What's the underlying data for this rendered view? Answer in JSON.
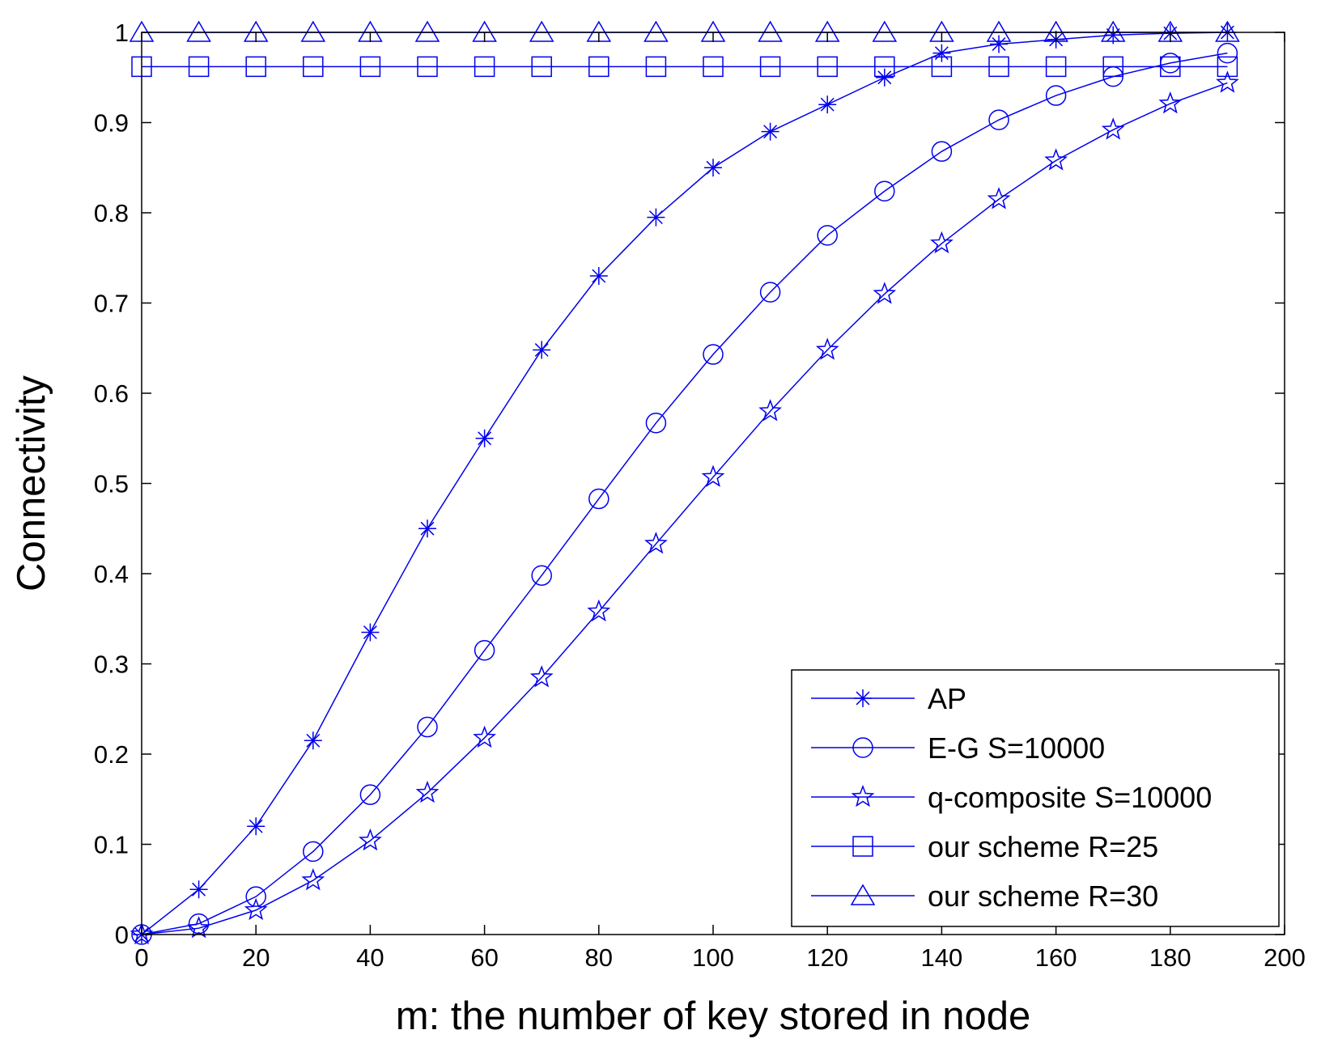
{
  "chart_data": {
    "type": "line",
    "title": "",
    "xlabel": "m: the number of key stored in node",
    "ylabel": "Connectivity",
    "xlim": [
      0,
      200
    ],
    "ylim": [
      0,
      1
    ],
    "xticks": [
      "0",
      "20",
      "40",
      "60",
      "80",
      "100",
      "120",
      "140",
      "160",
      "180",
      "200"
    ],
    "yticks": [
      "0",
      "0.1",
      "0.2",
      "0.3",
      "0.4",
      "0.5",
      "0.6",
      "0.7",
      "0.8",
      "0.9",
      "1"
    ],
    "grid": false,
    "legend_position": "bottom-right",
    "x": [
      0,
      10,
      20,
      30,
      40,
      50,
      60,
      70,
      80,
      90,
      100,
      110,
      120,
      130,
      140,
      150,
      160,
      170,
      180,
      190
    ],
    "series": [
      {
        "name": "AP",
        "marker": "asterisk",
        "color": "#0000ee",
        "values": [
          0,
          0.05,
          0.12,
          0.215,
          0.335,
          0.45,
          0.55,
          0.648,
          0.73,
          0.795,
          0.85,
          0.89,
          0.92,
          0.95,
          0.977,
          0.987,
          0.992,
          0.997,
          0.999,
          1.0
        ]
      },
      {
        "name": "E-G S=10000",
        "marker": "circle",
        "color": "#0000ee",
        "values": [
          0,
          0.012,
          0.042,
          0.092,
          0.155,
          0.23,
          0.315,
          0.398,
          0.483,
          0.567,
          0.643,
          0.712,
          0.775,
          0.824,
          0.868,
          0.903,
          0.93,
          0.951,
          0.966,
          0.977
        ]
      },
      {
        "name": "q-composite S=10000",
        "marker": "star",
        "color": "#0000ee",
        "values": [
          0,
          0.007,
          0.027,
          0.06,
          0.104,
          0.157,
          0.218,
          0.285,
          0.358,
          0.433,
          0.507,
          0.58,
          0.648,
          0.71,
          0.766,
          0.815,
          0.858,
          0.892,
          0.921,
          0.944
        ]
      },
      {
        "name": "our scheme R=25",
        "marker": "square",
        "color": "#0000ee",
        "values": [
          0.962,
          0.962,
          0.962,
          0.962,
          0.962,
          0.962,
          0.962,
          0.962,
          0.962,
          0.962,
          0.962,
          0.962,
          0.962,
          0.962,
          0.962,
          0.962,
          0.962,
          0.962,
          0.962,
          0.962
        ]
      },
      {
        "name": "our scheme R=30",
        "marker": "triangle",
        "color": "#0000ee",
        "values": [
          1,
          1,
          1,
          1,
          1,
          1,
          1,
          1,
          1,
          1,
          1,
          1,
          1,
          1,
          1,
          1,
          1,
          1,
          1,
          1
        ]
      }
    ]
  }
}
